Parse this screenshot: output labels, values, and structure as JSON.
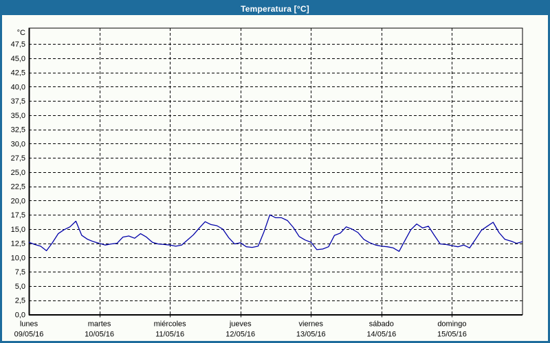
{
  "window": {
    "title": "Temperatura [°C]"
  },
  "colors": {
    "titlebar_bg": "#1E6C9C",
    "window_border": "#1E6C9C",
    "title_text": "#FFFFFF",
    "panel_bg": "#FBFDF8",
    "grid_and_axis": "#000000",
    "series_line": "#0000A8"
  },
  "chart_data": {
    "type": "line",
    "title": "Temperatura [°C]",
    "unit_label": "°C",
    "grid": "dashed",
    "legend": "none",
    "ylim": [
      0,
      50.3
    ],
    "y_tick_step": 2.5,
    "y_tick_labels": [
      "0,0",
      "2,5",
      "5,0",
      "7,5",
      "10,0",
      "12,5",
      "15,0",
      "17,5",
      "20,0",
      "22,5",
      "25,0",
      "27,5",
      "30,0",
      "32,5",
      "35,0",
      "37,5",
      "40,0",
      "42,5",
      "45,0",
      "47,5"
    ],
    "x_axis": {
      "days": [
        {
          "name": "lunes",
          "date": "09/05/16"
        },
        {
          "name": "martes",
          "date": "10/05/16"
        },
        {
          "name": "miércoles",
          "date": "11/05/16"
        },
        {
          "name": "jueves",
          "date": "12/05/16"
        },
        {
          "name": "viernes",
          "date": "13/05/16"
        },
        {
          "name": "sábado",
          "date": "14/05/16"
        },
        {
          "name": "domingo",
          "date": "15/05/16"
        }
      ]
    },
    "sampling": "temperature in °C sampled every 2 hours, lunes 09/05/16 00:00 to domingo 15/05/16 24:00",
    "series": [
      {
        "name": "Temperatura",
        "color": "#0000A8",
        "values": [
          12.7,
          12.3,
          12.0,
          11.2,
          12.6,
          14.2,
          14.9,
          15.4,
          16.4,
          13.9,
          13.2,
          12.8,
          12.5,
          12.2,
          12.4,
          12.5,
          13.6,
          13.8,
          13.4,
          14.2,
          13.6,
          12.7,
          12.4,
          12.3,
          12.2,
          12.0,
          12.2,
          13.1,
          14.0,
          15.2,
          16.3,
          15.8,
          15.6,
          15.0,
          13.5,
          12.4,
          12.6,
          11.9,
          11.8,
          12.0,
          14.5,
          17.5,
          17.0,
          17.0,
          16.5,
          15.3,
          13.7,
          13.1,
          12.7,
          11.4,
          11.5,
          11.9,
          13.9,
          14.3,
          15.4,
          15.0,
          14.4,
          13.2,
          12.6,
          12.2,
          12.0,
          11.9,
          11.7,
          11.1,
          13.0,
          14.9,
          15.9,
          15.2,
          15.5,
          13.9,
          12.4,
          12.3,
          12.1,
          11.9,
          12.2,
          11.7,
          13.2,
          14.8,
          15.5,
          16.2,
          14.4,
          13.2,
          12.9,
          12.5,
          12.8
        ]
      }
    ]
  }
}
